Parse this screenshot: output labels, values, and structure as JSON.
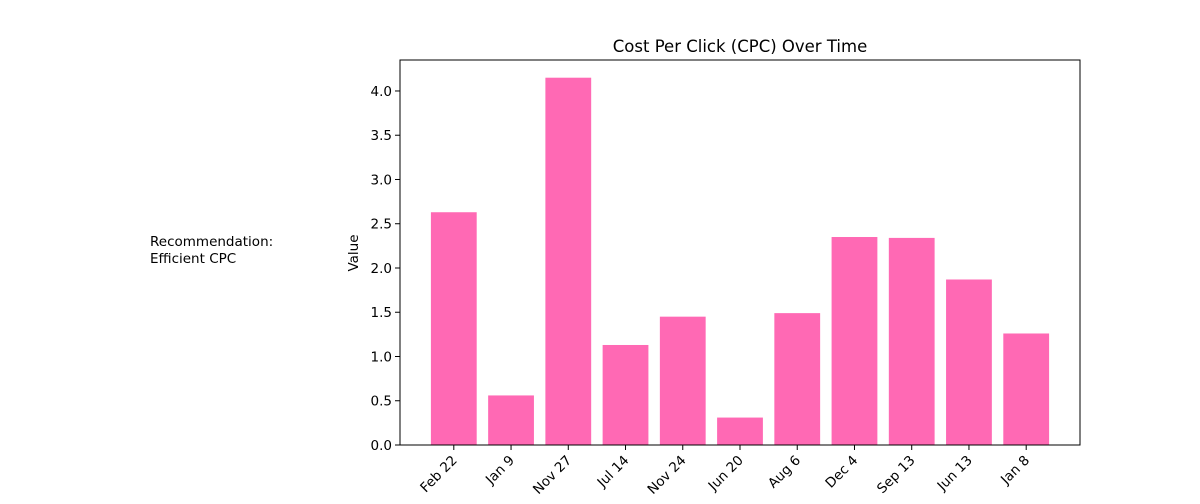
{
  "chart_data": {
    "type": "bar",
    "title": "Cost Per Click (CPC) Over Time",
    "xlabel": "",
    "ylabel": "Value",
    "categories": [
      "Feb 22",
      "Jan 9",
      "Nov 27",
      "Jul 14",
      "Nov 24",
      "Jun 20",
      "Aug 6",
      "Dec 4",
      "Sep 13",
      "Jun 13",
      "Jan 8"
    ],
    "values": [
      2.63,
      0.56,
      4.15,
      1.13,
      1.45,
      0.31,
      1.49,
      2.35,
      2.34,
      1.87,
      1.26
    ],
    "ylim": [
      0,
      4.35
    ],
    "yticks": [
      "0.0",
      "0.5",
      "1.0",
      "1.5",
      "2.0",
      "2.5",
      "3.0",
      "3.5",
      "4.0"
    ],
    "bar_color": "#ff69b4",
    "grid": false,
    "legend": "none"
  },
  "annotation": {
    "line1": "Recommendation:",
    "line2": "Efficient CPC"
  }
}
